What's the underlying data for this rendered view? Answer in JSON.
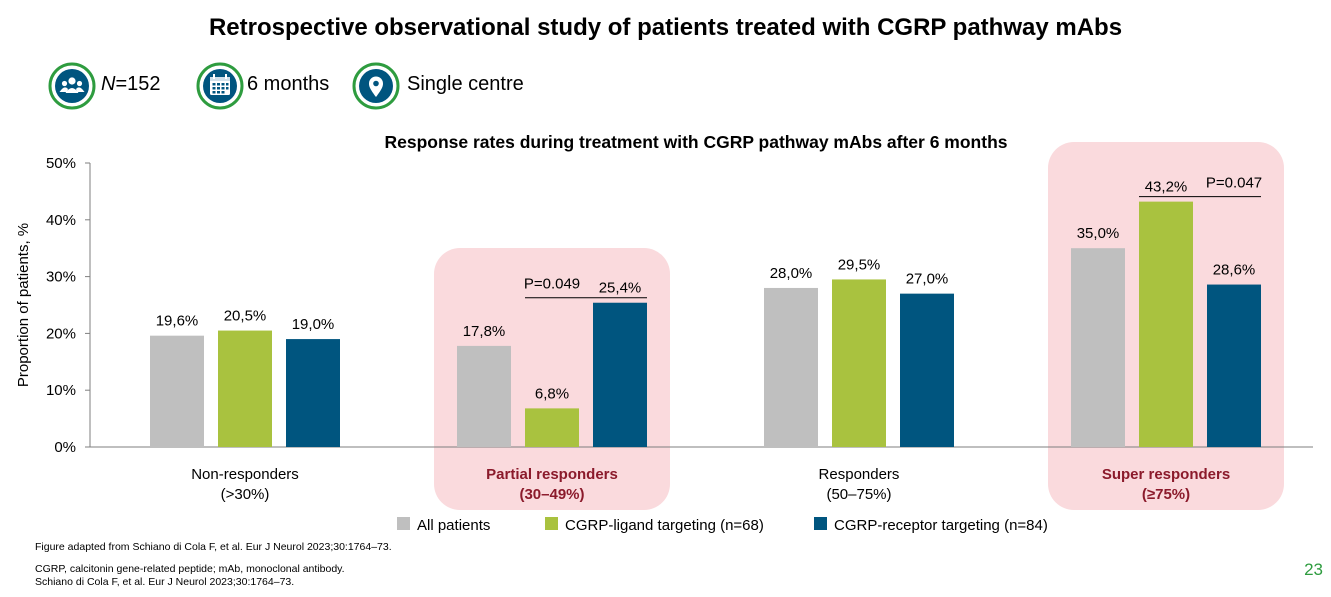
{
  "title": "Retrospective observational study of patients treated with CGRP pathway mAbs",
  "stats": [
    {
      "icon": "people-icon",
      "italic_prefix": "N",
      "text": "=152"
    },
    {
      "icon": "calendar-icon",
      "italic_prefix": "",
      "text": "6 months"
    },
    {
      "icon": "location-pin-icon",
      "italic_prefix": "",
      "text": "Single centre"
    }
  ],
  "chart_data": {
    "type": "bar",
    "title": "Response rates during treatment with CGRP pathway mAbs after 6 months",
    "ylabel": "Proportion of patients, %",
    "xlabel": "",
    "ylim": [
      0,
      50
    ],
    "yticks": [
      "0%",
      "10%",
      "20%",
      "30%",
      "40%",
      "50%"
    ],
    "grid": false,
    "legend_position": "bottom",
    "categories": [
      {
        "line1": "Non-responders",
        "line2": "(>30%)",
        "highlight": false
      },
      {
        "line1": "Partial responders",
        "line2": "(30–49%)",
        "highlight": true
      },
      {
        "line1": "Responders",
        "line2": "(50–75%)",
        "highlight": false
      },
      {
        "line1": "Super responders",
        "line2": "(≥75%)",
        "highlight": true
      }
    ],
    "series": [
      {
        "name": "All patients",
        "color": "#bfbfbf",
        "values": [
          19.6,
          17.8,
          28.0,
          35.0
        ],
        "labels": [
          "19,6%",
          "17,8%",
          "28,0%",
          "35,0%"
        ]
      },
      {
        "name": "CGRP-ligand targeting (n=68)",
        "color": "#a9c23f",
        "values": [
          20.5,
          6.8,
          29.5,
          43.2
        ],
        "labels": [
          "20,5%",
          "6,8%",
          "29,5%",
          "43,2%"
        ]
      },
      {
        "name": "CGRP-receptor targeting (n=84)",
        "color": "#00557f",
        "values": [
          19.0,
          25.4,
          27.0,
          28.6
        ],
        "labels": [
          "19,0%",
          "25,4%",
          "27,0%",
          "28,6%"
        ]
      }
    ],
    "annotations": [
      {
        "text": "P=0.049",
        "category": 1
      },
      {
        "text": "P=0.047",
        "category": 3
      }
    ],
    "highlight_color": "#fadadd",
    "highlight_text_color": "#8b1a2b"
  },
  "footnotes": {
    "source": "Figure adapted from Schiano di Cola F, et al. Eur J Neurol 2023;30:1764–73.",
    "abbrev": "CGRP, calcitonin gene-related peptide; mAb, monoclonal antibody.",
    "reference": "Schiano di Cola F, et al. Eur J Neurol 2023;30:1764–73."
  },
  "page_number": "23",
  "colors": {
    "accent_green": "#2e9c3f"
  }
}
